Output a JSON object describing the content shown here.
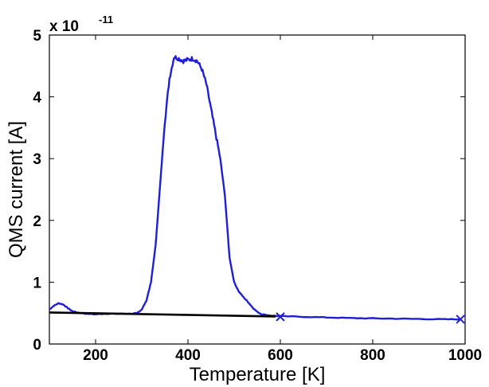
{
  "chart_data": {
    "type": "line",
    "xlabel": "Temperature [K]",
    "ylabel": "QMS current [A]",
    "xlim": [
      100,
      1000
    ],
    "ylim": [
      0,
      5e-11
    ],
    "x_ticks": [
      "200",
      "400",
      "600",
      "800",
      "1000"
    ],
    "y_ticks": [
      "0",
      "1",
      "2",
      "3",
      "4",
      "5"
    ],
    "y_tick_values": [
      0,
      1e-11,
      2e-11,
      3e-11,
      4e-11,
      5e-11
    ],
    "y_exponent": "-11",
    "y_exponent_prefix": "x 10",
    "grid": false,
    "series": [
      {
        "color": "#1f1fd6",
        "style": "noisy-line",
        "points": [
          [
            100,
            5.6e-12
          ],
          [
            110,
            6.2e-12
          ],
          [
            120,
            6.6e-12
          ],
          [
            130,
            6.4e-12
          ],
          [
            140,
            5.8e-12
          ],
          [
            150,
            5.3e-12
          ],
          [
            160,
            5.1e-12
          ],
          [
            180,
            4.9e-12
          ],
          [
            200,
            4.8e-12
          ],
          [
            220,
            4.9e-12
          ],
          [
            240,
            4.9e-12
          ],
          [
            260,
            4.9e-12
          ],
          [
            280,
            4.9e-12
          ],
          [
            290,
            5e-12
          ],
          [
            300,
            5.6e-12
          ],
          [
            310,
            7e-12
          ],
          [
            320,
            1e-11
          ],
          [
            330,
            1.6e-11
          ],
          [
            340,
            2.6e-11
          ],
          [
            350,
            3.6e-11
          ],
          [
            360,
            4.3e-11
          ],
          [
            370,
            4.65e-11
          ],
          [
            380,
            4.62e-11
          ],
          [
            390,
            4.58e-11
          ],
          [
            400,
            4.6e-11
          ],
          [
            410,
            4.62e-11
          ],
          [
            420,
            4.58e-11
          ],
          [
            430,
            4.45e-11
          ],
          [
            440,
            4.2e-11
          ],
          [
            450,
            3.8e-11
          ],
          [
            460,
            3.4e-11
          ],
          [
            470,
            3e-11
          ],
          [
            480,
            2.4e-11
          ],
          [
            490,
            1.4e-11
          ],
          [
            500,
            1e-11
          ],
          [
            510,
            8.5e-12
          ],
          [
            520,
            7.6e-12
          ],
          [
            530,
            6.8e-12
          ],
          [
            540,
            5.9e-12
          ],
          [
            550,
            5.2e-12
          ],
          [
            560,
            4.8e-12
          ],
          [
            580,
            4.6e-12
          ],
          [
            600,
            4.5e-12
          ],
          [
            650,
            4.4e-12
          ],
          [
            700,
            4.3e-12
          ],
          [
            750,
            4.2e-12
          ],
          [
            800,
            4.15e-12
          ],
          [
            850,
            4.1e-12
          ],
          [
            900,
            4.05e-12
          ],
          [
            950,
            4e-12
          ],
          [
            990,
            4e-12
          ]
        ]
      },
      {
        "color": "#000000",
        "style": "line",
        "points": [
          [
            100,
            5.1e-12
          ],
          [
            590,
            4.45e-12
          ]
        ]
      }
    ],
    "markers": [
      {
        "x": 600,
        "y": 4.4e-12,
        "symbol": "x",
        "color": "#1f1fd6"
      },
      {
        "x": 990,
        "y": 4e-12,
        "symbol": "x",
        "color": "#1f1fd6"
      }
    ]
  }
}
